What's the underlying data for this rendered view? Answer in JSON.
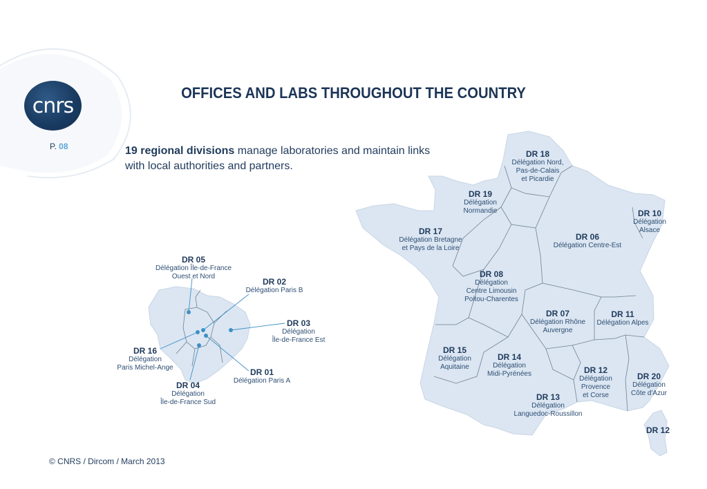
{
  "title": "OFFICES AND LABS THROUGHOUT THE COUNTRY",
  "logo_text": "cnrs",
  "page": {
    "prefix": "P.",
    "number": "08"
  },
  "intro": {
    "bold": "19 regional divisions",
    "rest": " manage laboratories and maintain links with local authorities and partners."
  },
  "footer": "© CNRS / Dircom / March 2013",
  "colors": {
    "map_fill": "#dbe6f2",
    "border": "#6f7f92",
    "text": "#1f3a5c",
    "pin": "#3d8fc6",
    "accent": "#5aa6d6"
  },
  "france_divisions": [
    {
      "code": "DR 18",
      "desc": [
        "Délégation Nord,",
        "Pas-de-Calais",
        "et Picardie"
      ]
    },
    {
      "code": "DR 19",
      "desc": [
        "Délégation",
        "Normandie"
      ]
    },
    {
      "code": "DR 10",
      "desc": [
        "Délégation",
        "Alsace"
      ]
    },
    {
      "code": "DR 17",
      "desc": [
        "Délégation Bretagne",
        "et Pays de la Loire"
      ]
    },
    {
      "code": "DR 06",
      "desc": [
        "Délégation Centre-Est"
      ]
    },
    {
      "code": "DR 08",
      "desc": [
        "Délégation",
        "Centre Limousin",
        "Poitou-Charentes"
      ]
    },
    {
      "code": "DR 07",
      "desc": [
        "Délégation Rhône",
        "Auvergne"
      ]
    },
    {
      "code": "DR 11",
      "desc": [
        "Délégation Alpes"
      ]
    },
    {
      "code": "DR 15",
      "desc": [
        "Délégation",
        "Aquitaine"
      ]
    },
    {
      "code": "DR 14",
      "desc": [
        "Délégation",
        "Midi-Pyrénées"
      ]
    },
    {
      "code": "DR 12",
      "desc": [
        "Délégation",
        "Provence",
        "et Corse"
      ]
    },
    {
      "code": "DR 20",
      "desc": [
        "Délégation",
        "Côte d'Azur"
      ]
    },
    {
      "code": "DR 13",
      "desc": [
        "Délégation",
        "Languedoc-Roussillon"
      ]
    },
    {
      "code": "DR 12",
      "desc": []
    }
  ],
  "paris_divisions": [
    {
      "code": "DR 05",
      "desc": [
        "Délégation Île-de-France",
        "Ouest et Nord"
      ]
    },
    {
      "code": "DR 02",
      "desc": [
        "Délégation Paris B"
      ]
    },
    {
      "code": "DR 03",
      "desc": [
        "Délégation",
        "Île-de-France Est"
      ]
    },
    {
      "code": "DR 16",
      "desc": [
        "Délégation",
        "Paris Michel-Ange"
      ]
    },
    {
      "code": "DR 01",
      "desc": [
        "Délégation Paris A"
      ]
    },
    {
      "code": "DR 04",
      "desc": [
        "Délégation",
        "Île-de-France Sud"
      ]
    }
  ]
}
